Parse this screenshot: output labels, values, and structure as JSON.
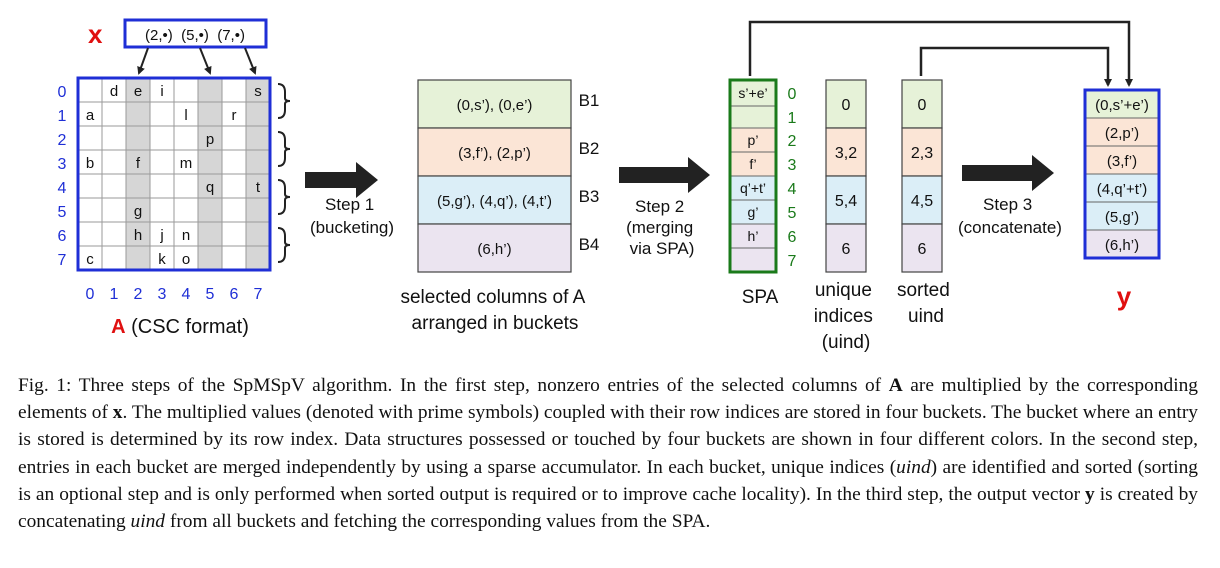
{
  "figure": {
    "x_label": "x",
    "x_entries": "(2,•)  (5,•)  (7,•)",
    "matrix_row_indices": [
      "0",
      "1",
      "2",
      "3",
      "4",
      "5",
      "6",
      "7"
    ],
    "matrix_col_indices": [
      "0",
      "1",
      "2",
      "3",
      "4",
      "5",
      "6",
      "7"
    ],
    "matrix_cells": [
      {
        "row": 0,
        "col": 1,
        "v": "d"
      },
      {
        "row": 0,
        "col": 2,
        "v": "e"
      },
      {
        "row": 0,
        "col": 3,
        "v": "i"
      },
      {
        "row": 0,
        "col": 7,
        "v": "s"
      },
      {
        "row": 1,
        "col": 0,
        "v": "a"
      },
      {
        "row": 1,
        "col": 4,
        "v": "l"
      },
      {
        "row": 1,
        "col": 6,
        "v": "r"
      },
      {
        "row": 2,
        "col": 5,
        "v": "p"
      },
      {
        "row": 3,
        "col": 0,
        "v": "b"
      },
      {
        "row": 3,
        "col": 2,
        "v": "f"
      },
      {
        "row": 3,
        "col": 4,
        "v": "m"
      },
      {
        "row": 4,
        "col": 5,
        "v": "q"
      },
      {
        "row": 4,
        "col": 7,
        "v": "t"
      },
      {
        "row": 5,
        "col": 2,
        "v": "g"
      },
      {
        "row": 6,
        "col": 2,
        "v": "h"
      },
      {
        "row": 6,
        "col": 3,
        "v": "j"
      },
      {
        "row": 6,
        "col": 4,
        "v": "n"
      },
      {
        "row": 7,
        "col": 0,
        "v": "c"
      },
      {
        "row": 7,
        "col": 3,
        "v": "k"
      },
      {
        "row": 7,
        "col": 4,
        "v": "o"
      }
    ],
    "selected_columns": [
      2,
      5,
      7
    ],
    "matrix_caption_letter": "A",
    "matrix_caption_rest": " (CSC format)",
    "step1_line1": "Step 1",
    "step1_line2": "(bucketing)",
    "buckets": [
      {
        "label": "B1",
        "content": "(0,s’), (0,e’)",
        "color": "#e6f2d8"
      },
      {
        "label": "B2",
        "content": "(3,f’), (2,p’)",
        "color": "#fbe5d6"
      },
      {
        "label": "B3",
        "content": "(5,g’), (4,q’), (4,t’)",
        "color": "#dbeef7"
      },
      {
        "label": "B4",
        "content": "(6,h’)",
        "color": "#ebe4f0"
      }
    ],
    "buckets_caption_line1": "selected columns of A",
    "buckets_caption_line2": "arranged in buckets",
    "step2_line1": "Step 2",
    "step2_line2": "(merging",
    "step2_line3": "via SPA)",
    "spa_cells": [
      "s’+e’",
      "",
      "p’",
      "f’",
      "q’+t’",
      "g’",
      "h’",
      ""
    ],
    "spa_indices": [
      "0",
      "1",
      "2",
      "3",
      "4",
      "5",
      "6",
      "7"
    ],
    "spa_label": "SPA",
    "uind_values": [
      "0",
      "3,2",
      "5,4",
      "6"
    ],
    "uind_caption_line1": "unique",
    "uind_caption_line2": "indices",
    "uind_caption_line3": "(uind)",
    "sorted_values": [
      "0",
      "2,3",
      "4,5",
      "6"
    ],
    "sorted_caption_line1": "sorted",
    "sorted_caption_line2": "uind",
    "step3_line1": "Step 3",
    "step3_line2": "(concatenate)",
    "y_entries": [
      "(0,s’+e’)",
      "(2,p’)",
      "(3,f’)",
      "(4,q’+t’)",
      "(5,g’)",
      "(6,h’)"
    ],
    "y_label": "y",
    "colors": {
      "blue": "#1f2fd6",
      "red": "#e01010",
      "green": "#1a7a1a",
      "grey_column": "#d6d6d6",
      "arrow": "#222222"
    }
  },
  "caption": {
    "fig_label": "Fig. 1:",
    "s1": " Three steps of the SpMSpV algorithm. In the first step, nonzero entries of the selected columns of ",
    "A": "A",
    "s2": " are multiplied by the corresponding elements of ",
    "x": "x",
    "s3": ". The multiplied values (denoted with prime symbols) coupled with their row indices are stored in four buckets. The bucket where an entry is stored is determined by its row index. Data structures possessed or touched by four buckets are shown in four different colors. In the second step, entries in each bucket are merged independently by using a sparse accumulator. In each bucket, unique indices (",
    "uind1": "uind",
    "s4": ") are identified and sorted (sorting is an optional step and is only performed when sorted output is required or to improve cache locality). In the third step, the output vector ",
    "y": "y",
    "s5": " is created by concatenating ",
    "uind2": "uind",
    "s6": " from all buckets and fetching the corresponding values from the SPA."
  }
}
